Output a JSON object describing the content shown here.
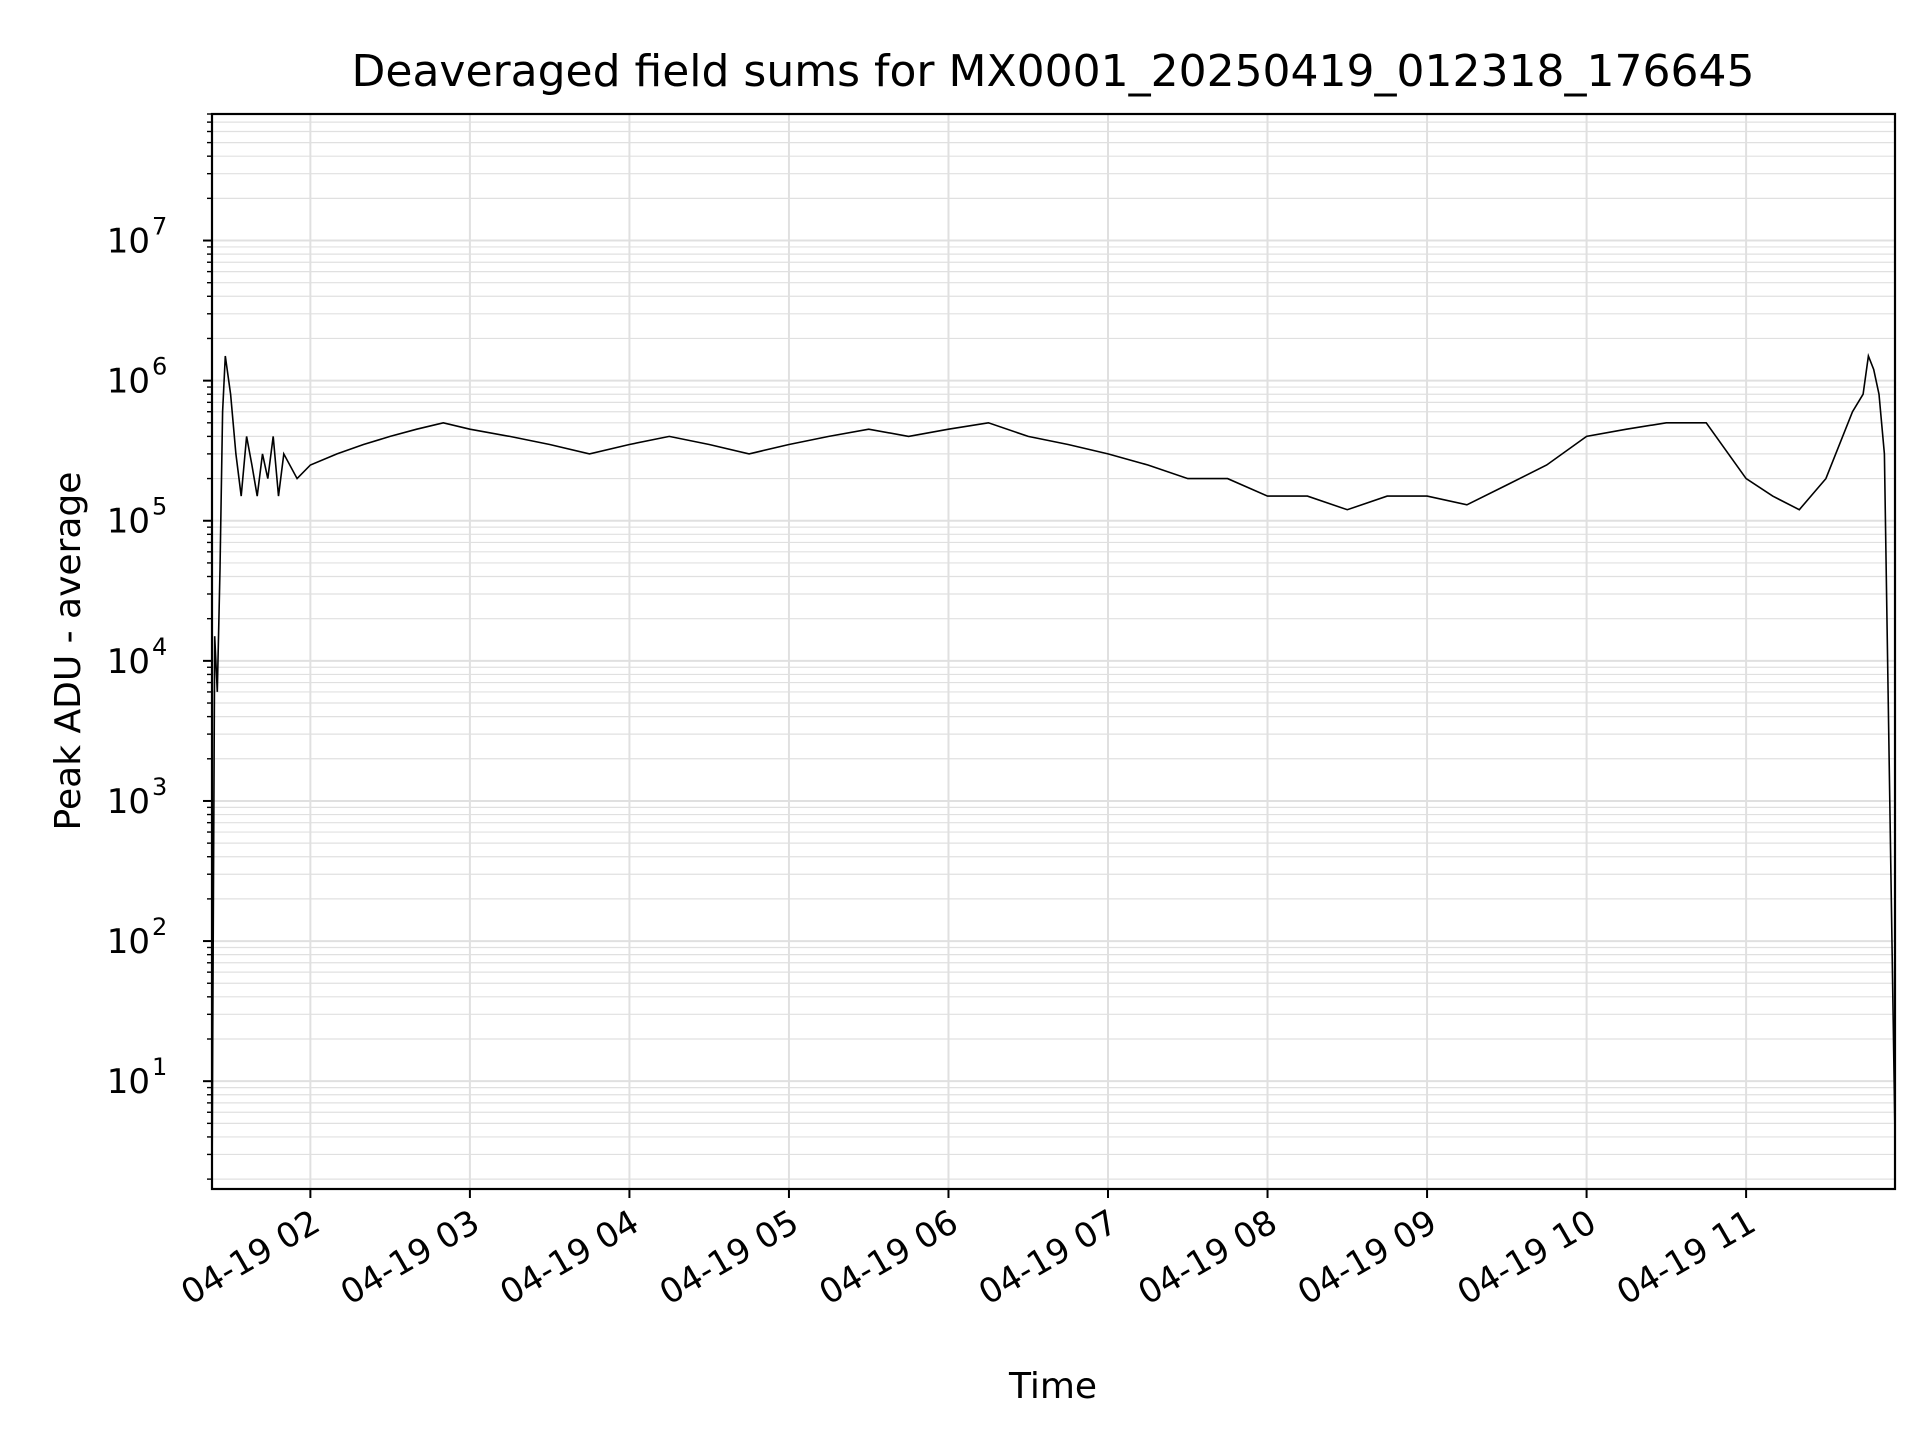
{
  "chart_data": {
    "type": "line",
    "title": "Deaveraged field sums for MX0001_20250419_012318_176645",
    "xlabel": "Time",
    "ylabel": "Peak ADU - average",
    "yscale": "log",
    "ylim": [
      1.7,
      80000000
    ],
    "xlim": [
      "2025-04-19 01:23",
      "2025-04-19 11:56"
    ],
    "x_ticks": [
      "04-19 02",
      "04-19 03",
      "04-19 04",
      "04-19 05",
      "04-19 06",
      "04-19 07",
      "04-19 08",
      "04-19 09",
      "04-19 10",
      "04-19 11"
    ],
    "y_ticks": [
      {
        "base": "10",
        "exp": "1"
      },
      {
        "base": "10",
        "exp": "2"
      },
      {
        "base": "10",
        "exp": "3"
      },
      {
        "base": "10",
        "exp": "4"
      },
      {
        "base": "10",
        "exp": "5"
      },
      {
        "base": "10",
        "exp": "6"
      },
      {
        "base": "10",
        "exp": "7"
      }
    ],
    "grid": true,
    "line_color": "#000000",
    "grid_color": "#e0e0e0",
    "series": [
      {
        "x": [
          "2025-04-19 01:23",
          "2025-04-19 01:24",
          "2025-04-19 01:25",
          "2025-04-19 01:26",
          "2025-04-19 01:27",
          "2025-04-19 01:28",
          "2025-04-19 01:30",
          "2025-04-19 01:32",
          "2025-04-19 01:34",
          "2025-04-19 01:36",
          "2025-04-19 01:38",
          "2025-04-19 01:40",
          "2025-04-19 01:42",
          "2025-04-19 01:44",
          "2025-04-19 01:46",
          "2025-04-19 01:48",
          "2025-04-19 01:50",
          "2025-04-19 01:55",
          "2025-04-19 02:00",
          "2025-04-19 02:10",
          "2025-04-19 02:20",
          "2025-04-19 02:30",
          "2025-04-19 02:40",
          "2025-04-19 02:50",
          "2025-04-19 03:00",
          "2025-04-19 03:15",
          "2025-04-19 03:30",
          "2025-04-19 03:45",
          "2025-04-19 04:00",
          "2025-04-19 04:15",
          "2025-04-19 04:30",
          "2025-04-19 04:45",
          "2025-04-19 05:00",
          "2025-04-19 05:15",
          "2025-04-19 05:30",
          "2025-04-19 05:45",
          "2025-04-19 06:00",
          "2025-04-19 06:15",
          "2025-04-19 06:30",
          "2025-04-19 06:45",
          "2025-04-19 07:00",
          "2025-04-19 07:15",
          "2025-04-19 07:30",
          "2025-04-19 07:45",
          "2025-04-19 08:00",
          "2025-04-19 08:15",
          "2025-04-19 08:30",
          "2025-04-19 08:45",
          "2025-04-19 09:00",
          "2025-04-19 09:15",
          "2025-04-19 09:30",
          "2025-04-19 09:45",
          "2025-04-19 10:00",
          "2025-04-19 10:15",
          "2025-04-19 10:30",
          "2025-04-19 10:45",
          "2025-04-19 11:00",
          "2025-04-19 11:10",
          "2025-04-19 11:20",
          "2025-04-19 11:30",
          "2025-04-19 11:40",
          "2025-04-19 11:44",
          "2025-04-19 11:46",
          "2025-04-19 11:48",
          "2025-04-19 11:50",
          "2025-04-19 11:52",
          "2025-04-19 11:56"
        ],
        "y": [
          1.7,
          15000,
          6000,
          45000,
          600000,
          1500000,
          800000,
          300000,
          150000,
          400000,
          250000,
          150000,
          300000,
          200000,
          400000,
          150000,
          300000,
          200000,
          250000,
          300000,
          350000,
          400000,
          450000,
          500000,
          450000,
          400000,
          350000,
          300000,
          350000,
          400000,
          350000,
          300000,
          350000,
          400000,
          450000,
          400000,
          450000,
          500000,
          400000,
          350000,
          300000,
          250000,
          200000,
          200000,
          150000,
          150000,
          120000,
          150000,
          150000,
          130000,
          180000,
          250000,
          400000,
          450000,
          500000,
          500000,
          200000,
          150000,
          120000,
          200000,
          600000,
          800000,
          1500000,
          1200000,
          800000,
          300000,
          4
        ]
      }
    ]
  }
}
